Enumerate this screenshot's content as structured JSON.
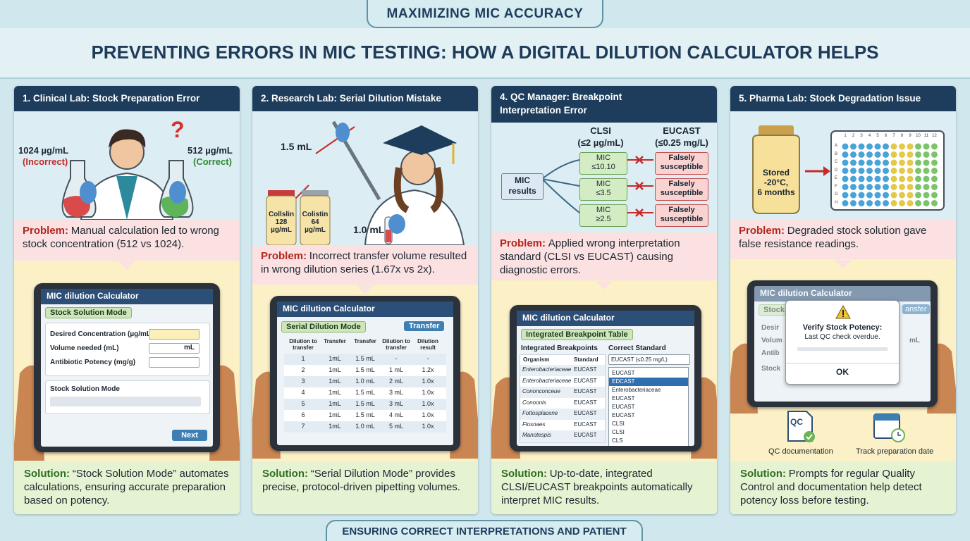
{
  "header": {
    "kicker": "MAXIMIZING MIC ACCURACY",
    "title": "PREVENTING ERRORS IN MIC TESTING: HOW A DIGITAL DILUTION CALCULATOR HELPS"
  },
  "panels": [
    {
      "title": "1. Clinical Lab: Stock Preparation Error",
      "illustration": {
        "mark": "?",
        "left_value": "1024 µg/mL",
        "left_note": "(Incorrect)",
        "right_value": "512 µg/mL",
        "right_note": "(Correct)"
      },
      "problem": {
        "label": "Problem:",
        "text": "Manual calculation led to wrong stock concentration (512 vs 1024)."
      },
      "tablet": {
        "app": "MIC dilution Calculator",
        "mode": "Stock Solution Mode",
        "fields": [
          "Desired Concentration (µg/mL)",
          "Volume needed (mL)",
          "Antibiotic Potency (mg/g)"
        ],
        "unit": "mL",
        "section": "Stock Solution Mode",
        "button": "Next"
      },
      "solution": {
        "label": "Solution:",
        "text": "“Stock Solution Mode” automates calculations, ensuring accurate preparation based on potency."
      }
    },
    {
      "title": "2. Research Lab: Serial Dilution Mistake",
      "illustration": {
        "volume_top": "1.5 mL",
        "volume_bottom": "1.0 mL",
        "vials": [
          [
            "Collslin",
            "128",
            "µg/mL"
          ],
          [
            "Colistin",
            "64",
            "µg/mL"
          ]
        ]
      },
      "problem": {
        "label": "Problem:",
        "text": "Incorrect transfer volume resulted in wrong dilution series (1.67x vs 2x)."
      },
      "tablet": {
        "app": "MIC dilution Calculator",
        "mode": "Serial Dilution Mode",
        "button": "Transfer",
        "columns": [
          "Dilution to transfer",
          "Transfer",
          "Transfer",
          "Dilution to transfer",
          "Dilution result"
        ],
        "rows": [
          [
            "1",
            "1mL",
            "1.5 mL",
            "-",
            "-"
          ],
          [
            "2",
            "1mL",
            "1.5 mL",
            "1 mL",
            "1.2x"
          ],
          [
            "3",
            "1mL",
            "1.0 mL",
            "2 mL",
            "1.0x"
          ],
          [
            "4",
            "1mL",
            "1.5 mL",
            "3 mL",
            "1.0x"
          ],
          [
            "5",
            "1mL",
            "1.5 mL",
            "3 mL",
            "1.0x"
          ],
          [
            "6",
            "1mL",
            "1.5 mL",
            "4 mL",
            "1.0x"
          ],
          [
            "7",
            "1mL",
            "1.0 mL",
            "5 mL",
            "1.0x"
          ]
        ]
      },
      "solution": {
        "label": "Solution:",
        "text": "“Serial Dilution Mode” provides precise, protocol-driven pipetting volumes."
      }
    },
    {
      "title": "4. QC Manager: Breakpoint Interpretation Error",
      "illustration": {
        "standards": [
          [
            "CLSI",
            "(≤2 µg/mL)"
          ],
          [
            "EUCAST",
            "(≤0.25 mg/L)"
          ]
        ],
        "input": "MIC results",
        "mics": [
          [
            "MIC",
            "≤10.10"
          ],
          [
            "MIC",
            "≤3.5"
          ],
          [
            "MIC",
            "≥2.5"
          ]
        ],
        "verdicts": [
          "Falsely susceptible",
          "Falsely susceptible",
          "Falsely susceptible"
        ]
      },
      "problem": {
        "label": "Problem:",
        "text": "Applied wrong interpretation standard (CLSI vs EUCAST) causing diagnostic errors."
      },
      "tablet": {
        "app": "MIC dilution Calculator",
        "mode": "Integrated Breakpoint Table",
        "left_header": "Integrated Breakpoints",
        "right_header": "Correct Standard",
        "columns": [
          "Organism",
          "Standard"
        ],
        "rows": [
          [
            "Enterobacteriaceae",
            "EUCAST"
          ],
          [
            "Enterobacteriaceae",
            "EUCAST"
          ],
          [
            "Cononconceue",
            "EUCAST"
          ],
          [
            "Conoonis",
            "EUCAST"
          ],
          [
            "Fottosplacene",
            "EUCAST"
          ],
          [
            "Flosnaes",
            "EUCAST"
          ],
          [
            "Manotespis",
            "EUCAST"
          ]
        ],
        "select": "EUCAST (≤0.25 mg/L)",
        "options": [
          "EUCAST",
          "EDCAST",
          "Enterobacteriaceae",
          "EUCAST",
          "EUCAST",
          "EUCAST",
          "CLSI",
          "CLSI",
          "CLS"
        ]
      },
      "solution": {
        "label": "Solution:",
        "text": "Up-to-date, integrated CLSI/EUCAST breakpoints automatically interpret MIC results."
      }
    },
    {
      "title": "5. Pharma Lab: Stock Degradation Issue",
      "illustration": {
        "vial": [
          "Stored",
          "-20°C,",
          "6 months"
        ],
        "plate_columns": [
          "1",
          "2",
          "3",
          "4",
          "5",
          "6",
          "7",
          "8",
          "9",
          "10",
          "11",
          "12"
        ],
        "plate_rows": [
          "A",
          "B",
          "C",
          "D",
          "E",
          "F",
          "G",
          "H"
        ]
      },
      "problem": {
        "label": "Problem:",
        "text": "Degraded stock solution gave false resistance readings."
      },
      "tablet": {
        "app": "MIC dilution Calculator",
        "mode": "Stock",
        "side_button": "ansfer",
        "fields": [
          "Desir",
          "Volum",
          "Antib"
        ],
        "unit": "mL",
        "section": "Stock",
        "dialog_title": "Verify Stock Potency:",
        "dialog_text": "Last QC check overdue.",
        "dialog_button": "OK"
      },
      "icons": {
        "qc_mark": "QC",
        "qc_label": "QC documentation",
        "date_label": "Track preparation date"
      },
      "solution": {
        "label": "Solution:",
        "text": "Prompts for regular Quality Control and documentation help detect potency loss before testing."
      }
    }
  ],
  "footer": "ENSURING CORRECT INTERPRETATIONS AND PATIENT CARE"
}
